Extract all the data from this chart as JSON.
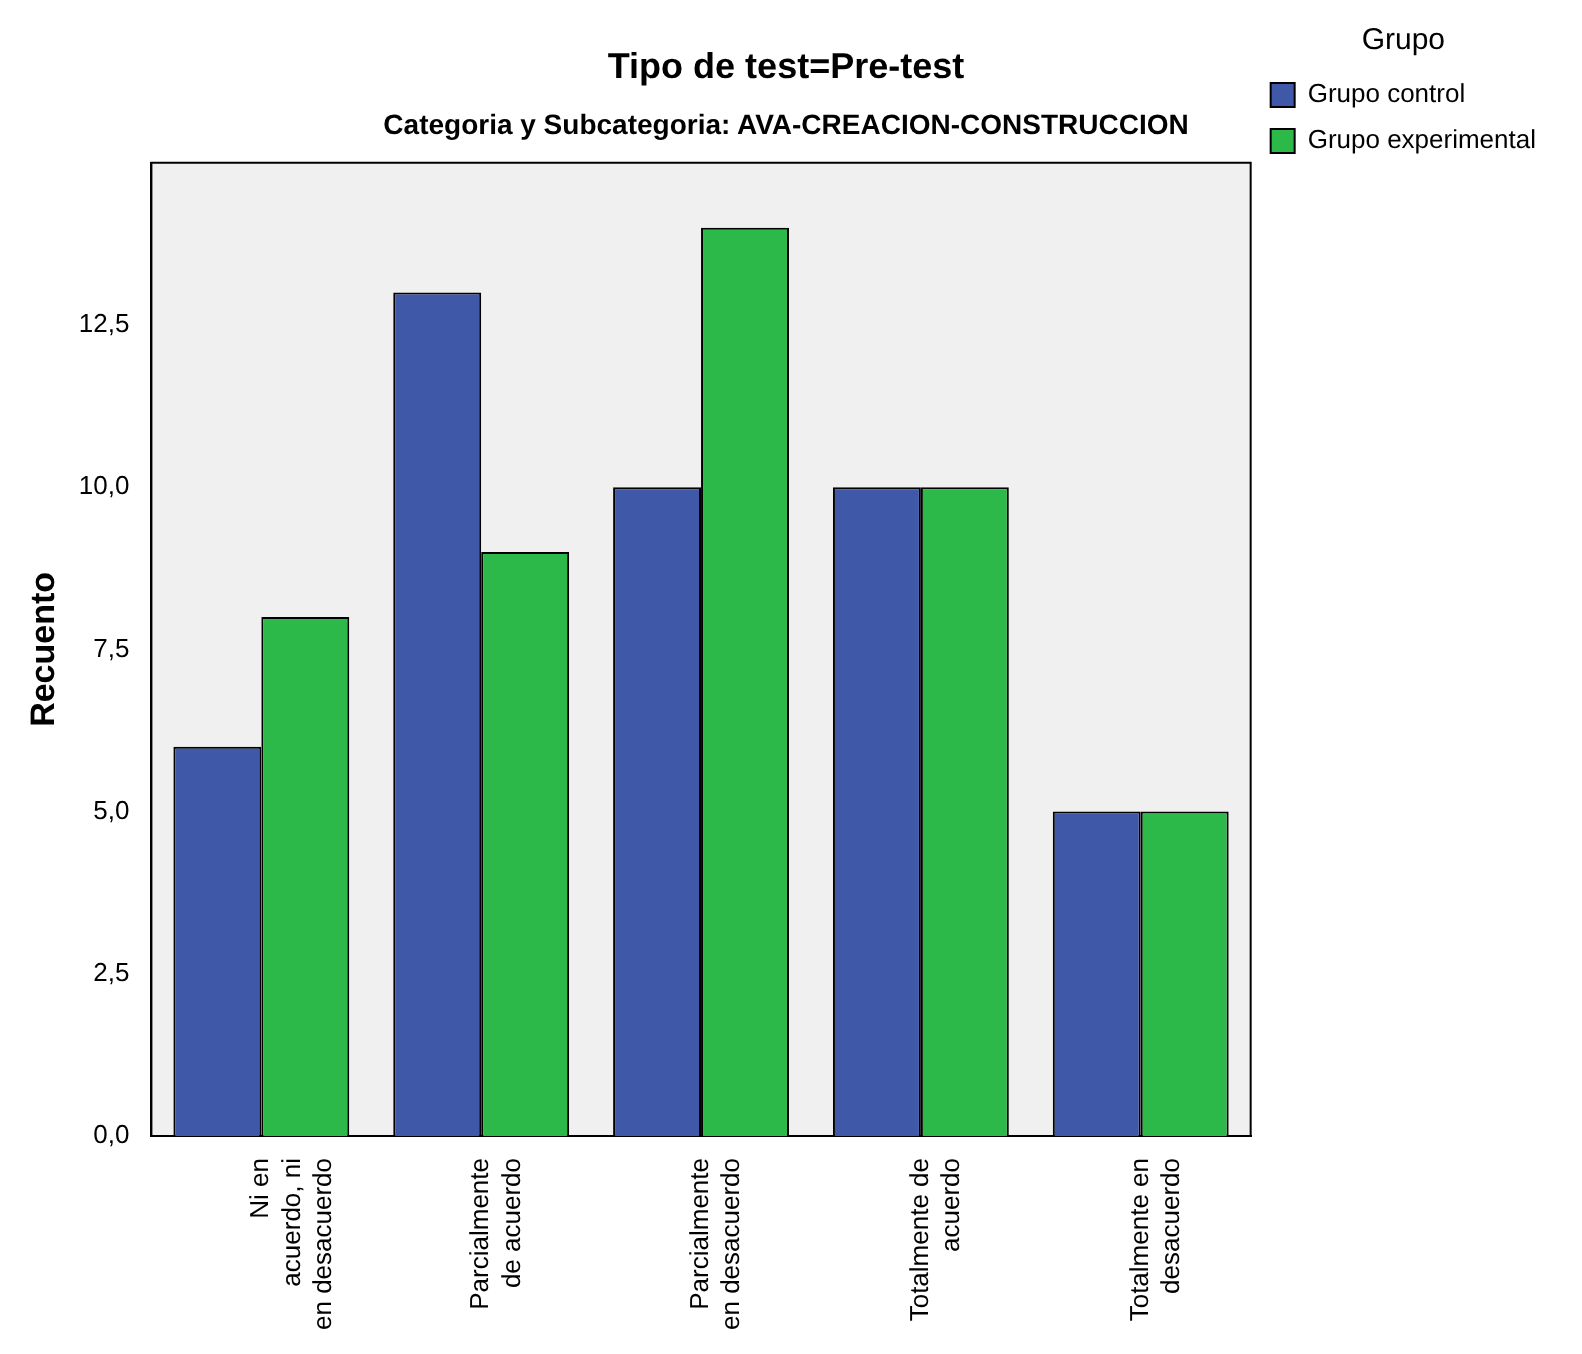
{
  "chart_data": {
    "type": "bar",
    "title": "Tipo de test=Pre-test",
    "subtitle": "Categoria y Subcategoria: AVA-CREACION-CONSTRUCCION",
    "ylabel": "Recuento",
    "legend_title": "Grupo",
    "legend": "top right",
    "categories": [
      "Ni en acuerdo, ni en desacuerdo",
      "Parcialmente de acuerdo",
      "Parcialmente en desacuerdo",
      "Totalmente de acuerdo",
      "Totalmente en desacuerdo"
    ],
    "series": [
      {
        "name": "Grupo control",
        "color": "#3f58a8",
        "values": [
          6,
          13,
          10,
          10,
          5
        ]
      },
      {
        "name": "Grupo experimental",
        "color": "#2db84a",
        "values": [
          8,
          9,
          14,
          10,
          5
        ]
      }
    ],
    "ylim": [
      0,
      15
    ],
    "yticks": [
      {
        "value": 0,
        "label": "0,0"
      },
      {
        "value": 2.5,
        "label": "2,5"
      },
      {
        "value": 5,
        "label": "5,0"
      },
      {
        "value": 7.5,
        "label": "7,5"
      },
      {
        "value": 10,
        "label": "10,0"
      },
      {
        "value": 12.5,
        "label": "12,5"
      }
    ],
    "grid": false
  }
}
